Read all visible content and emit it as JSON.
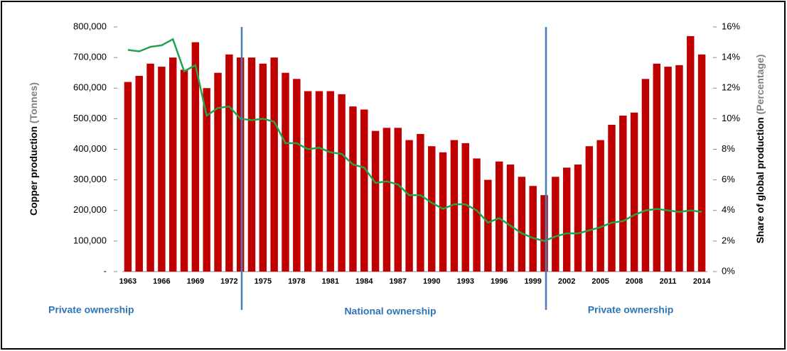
{
  "chart_data": {
    "type": "bar",
    "ylabel": "Copper production",
    "ylabel_unit": "(Tonnes)",
    "y2label": "Share of global production",
    "y2label_unit": "(Percentage)",
    "annotations": [
      "Private ownership",
      "National ownership",
      "Private ownership"
    ],
    "categories": [
      "1963",
      null,
      null,
      "1966",
      null,
      null,
      "1969",
      null,
      null,
      "1972",
      null,
      null,
      "1975",
      null,
      null,
      "1978",
      null,
      null,
      "1981",
      null,
      null,
      "1984",
      null,
      null,
      "1987",
      null,
      null,
      "1990",
      null,
      null,
      "1993",
      null,
      null,
      "1996",
      null,
      null,
      "1999",
      null,
      null,
      "2002",
      null,
      null,
      "2005",
      null,
      null,
      "2008",
      null,
      null,
      "2011",
      null,
      null,
      "2014"
    ],
    "series": [
      {
        "color": "#c00000",
        "values": [
          620000,
          640000,
          680000,
          670000,
          700000,
          660000,
          750000,
          600000,
          650000,
          710000,
          700000,
          700000,
          680000,
          700000,
          650000,
          630000,
          590000,
          590000,
          590000,
          580000,
          540000,
          530000,
          460000,
          470000,
          470000,
          430000,
          450000,
          410000,
          390000,
          430000,
          420000,
          370000,
          300000,
          360000,
          350000,
          310000,
          280000,
          250000,
          310000,
          340000,
          350000,
          410000,
          430000,
          480000,
          510000,
          520000,
          630000,
          680000,
          670000,
          675000,
          770000,
          710000
        ]
      },
      {
        "type": "line",
        "axis": "y2",
        "color": "#22a24a",
        "values": [
          14.5,
          14.4,
          14.7,
          14.8,
          15.2,
          13.1,
          13.5,
          10.2,
          10.7,
          10.8,
          10.0,
          9.9,
          10.0,
          9.8,
          8.4,
          8.4,
          8.0,
          8.1,
          7.8,
          7.7,
          7.0,
          6.8,
          5.8,
          5.9,
          5.7,
          5.0,
          5.0,
          4.5,
          4.1,
          4.4,
          4.4,
          4.0,
          3.2,
          3.5,
          3.0,
          2.5,
          2.2,
          2.0,
          2.3,
          2.5,
          2.5,
          2.7,
          2.9,
          3.2,
          3.3,
          3.7,
          4.0,
          4.1,
          4.0,
          3.9,
          4.0,
          3.9
        ]
      }
    ],
    "ylim": [
      0,
      800000
    ],
    "yticks": [
      {
        "value": 0,
        "label": "-"
      },
      {
        "value": 100000,
        "label": "100,000"
      },
      {
        "value": 200000,
        "label": "200,000"
      },
      {
        "value": 300000,
        "label": "300,000"
      },
      {
        "value": 400000,
        "label": "400,000"
      },
      {
        "value": 500000,
        "label": "500,000"
      },
      {
        "value": 600000,
        "label": "600,000"
      },
      {
        "value": 700000,
        "label": "700,000"
      },
      {
        "value": 800000,
        "label": "800,000"
      }
    ],
    "y2lim": [
      0,
      16
    ],
    "y2ticks": [
      {
        "value": 0,
        "label": "0%"
      },
      {
        "value": 2,
        "label": "2%"
      },
      {
        "value": 4,
        "label": "4%"
      },
      {
        "value": 6,
        "label": "6%"
      },
      {
        "value": 8,
        "label": "8%"
      },
      {
        "value": 10,
        "label": "10%"
      },
      {
        "value": 12,
        "label": "12%"
      },
      {
        "value": 14,
        "label": "14%"
      },
      {
        "value": 16,
        "label": "16%"
      }
    ]
  }
}
